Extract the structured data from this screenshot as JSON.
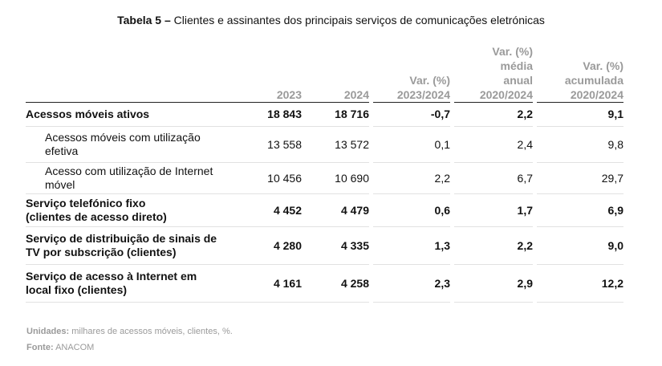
{
  "title": {
    "prefix": "Tabela 5 –",
    "text": "Clientes e assinantes dos principais serviços de comunicações eletrónicas"
  },
  "table": {
    "headers": {
      "y2023": "2023",
      "y2024": "2024",
      "var1_l1": "Var. (%)",
      "var1_l2": "2023/2024",
      "var2_l1": "Var. (%)",
      "var2_l2": "média",
      "var2_l3": "anual",
      "var2_l4": "2020/2024",
      "var3_l1": "Var. (%)",
      "var3_l2": "acumulada",
      "var3_l3": "2020/2024"
    },
    "rows": [
      {
        "label_1": "Acessos móveis ativos",
        "label_2": "",
        "v2023": "18 843",
        "v2024": "18 716",
        "var1": "-0,7",
        "var2": "2,2",
        "var3": "9,1"
      },
      {
        "label_1": "Acessos móveis com utilização",
        "label_2": "efetiva",
        "v2023": "13 558",
        "v2024": "13 572",
        "var1": "0,1",
        "var2": "2,4",
        "var3": "9,8"
      },
      {
        "label_1": "Acesso com utilização de Internet",
        "label_2": "móvel",
        "v2023": "10 456",
        "v2024": "10 690",
        "var1": "2,2",
        "var2": "6,7",
        "var3": "29,7"
      },
      {
        "label_1": "Serviço telefónico fixo",
        "label_2": "(clientes de acesso direto)",
        "v2023": "4 452",
        "v2024": "4 479",
        "var1": "0,6",
        "var2": "1,7",
        "var3": "6,9"
      },
      {
        "label_1": "Serviço de distribuição de sinais de",
        "label_2": "TV por subscrição (clientes)",
        "v2023": "4 280",
        "v2024": "4 335",
        "var1": "1,3",
        "var2": "2,2",
        "var3": "9,0"
      },
      {
        "label_1": "Serviço de acesso à Internet em",
        "label_2": "local fixo (clientes)",
        "v2023": "4 161",
        "v2024": "4 258",
        "var1": "2,3",
        "var2": "2,9",
        "var3": "12,2"
      }
    ]
  },
  "footer": {
    "units_label": "Unidades:",
    "units_text": "milhares de acessos móveis, clientes, %.",
    "source_label": "Fonte:",
    "source_text": "ANACOM"
  }
}
